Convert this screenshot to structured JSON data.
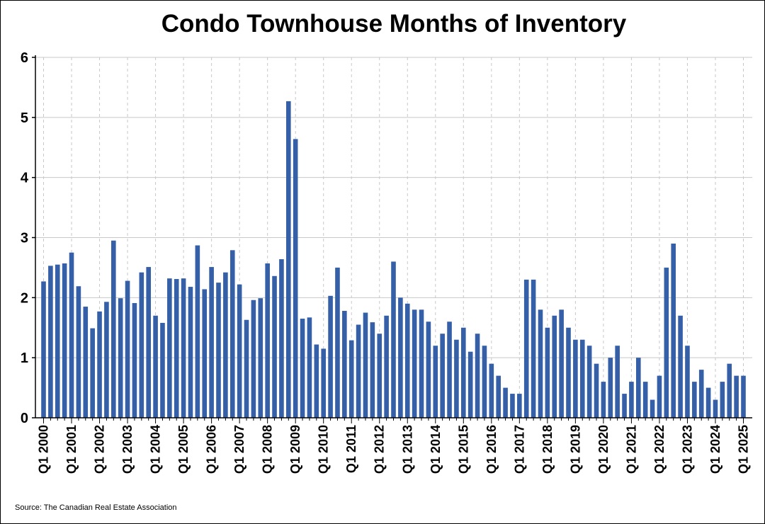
{
  "chart_data": {
    "type": "bar",
    "title": "Condo Townhouse Months of Inventory",
    "source": "Source: The Canadian Real Estate Association",
    "xlabel": "",
    "ylabel": "",
    "ylim": [
      0,
      6
    ],
    "y_ticks": [
      0,
      1,
      2,
      3,
      4,
      5,
      6
    ],
    "x_tick_labels": [
      "Q1 2000",
      "Q1 2001",
      "Q1 2002",
      "Q1 2003",
      "Q1 2004",
      "Q1 2005",
      "Q1 2006",
      "Q1 2007",
      "Q1 2008",
      "Q1 2009",
      "Q1 2010",
      "Q1 2011",
      "Q1 2012",
      "Q1 2013",
      "Q1 2014",
      "Q1 2015",
      "Q1 2016",
      "Q1 2017",
      "Q1 2018",
      "Q1 2019",
      "Q1 2020",
      "Q1 2021",
      "Q1 2022",
      "Q1 2023",
      "Q1 2024",
      "Q1 2025"
    ],
    "grid": true,
    "bar_color": "#3560a8",
    "series": [
      {
        "values": [
          2.27,
          2.53,
          2.55,
          2.57,
          2.75,
          2.19,
          1.85,
          1.49,
          1.77,
          1.93,
          2.95,
          1.99,
          2.28,
          1.91,
          2.42,
          2.51,
          1.7,
          1.58,
          2.32,
          2.31,
          2.32,
          2.18,
          2.87,
          2.14,
          2.51,
          2.25,
          2.42,
          2.79,
          2.22,
          1.63,
          1.96,
          1.99,
          2.57,
          2.36,
          2.64,
          5.27,
          4.64,
          1.65,
          1.67,
          1.22,
          1.15,
          2.03,
          2.5,
          1.78,
          1.29,
          1.55,
          1.75,
          1.59,
          1.4,
          1.7,
          2.6,
          2.0,
          1.9,
          1.8,
          1.8,
          1.6,
          1.2,
          1.4,
          1.6,
          1.3,
          1.5,
          1.1,
          1.4,
          1.2,
          0.9,
          0.7,
          0.5,
          0.4,
          0.4,
          2.3,
          2.3,
          1.8,
          1.5,
          1.7,
          1.8,
          1.5,
          1.3,
          1.3,
          1.2,
          0.9,
          0.6,
          1.0,
          1.2,
          0.4,
          0.6,
          1.0,
          0.6,
          0.3,
          0.7,
          2.5,
          2.9,
          1.7,
          1.2,
          0.6,
          0.8,
          0.5,
          0.3,
          0.6,
          0.9,
          0.7,
          0.7
        ]
      }
    ]
  }
}
